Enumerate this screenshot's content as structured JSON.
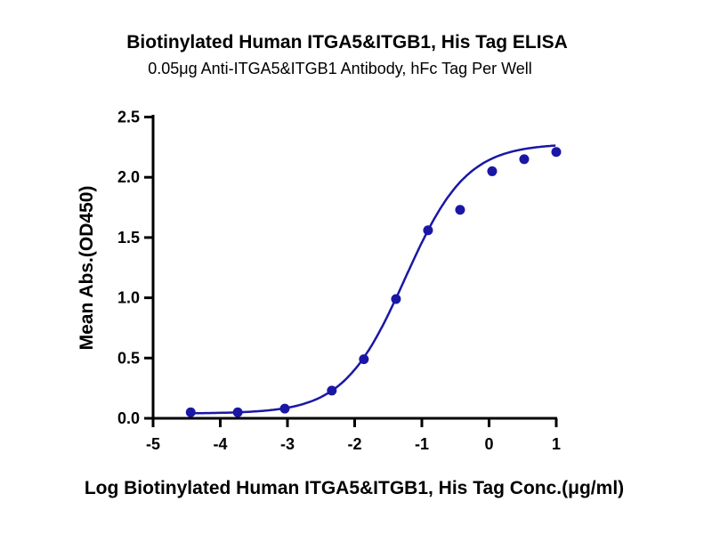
{
  "chart_data": {
    "type": "scatter",
    "title": "Biotinylated Human ITGA5&ITGB1, His Tag ELISA",
    "subtitle": "0.05μg Anti-ITGA5&ITGB1 Antibody, hFc Tag Per Well",
    "xlabel": "Log Biotinylated Human ITGA5&ITGB1, His Tag Conc.(μg/ml)",
    "ylabel": "Mean Abs.(OD450)",
    "xlim": [
      -5,
      1
    ],
    "ylim": [
      0,
      2.5
    ],
    "xticks": [
      "-5",
      "-4",
      "-3",
      "-2",
      "-1",
      "0",
      "1"
    ],
    "yticks": [
      "0.0",
      "0.5",
      "1.0",
      "1.5",
      "2.0",
      "2.5"
    ],
    "grid": false,
    "color": "#1a17a6",
    "series": [
      {
        "name": "Mean Abs.(OD450)",
        "x": [
          -4.44,
          -3.74,
          -3.04,
          -2.34,
          -1.863,
          -1.385,
          -0.908,
          -0.431,
          0.046,
          0.523,
          1.0
        ],
        "y": [
          0.05,
          0.05,
          0.08,
          0.23,
          0.49,
          0.99,
          1.56,
          1.73,
          2.05,
          2.15,
          2.21
        ]
      }
    ],
    "fit": {
      "model": "4PL",
      "bottom": 0.04,
      "top": 2.28,
      "logEC50": -1.25,
      "hill": 0.95
    }
  }
}
